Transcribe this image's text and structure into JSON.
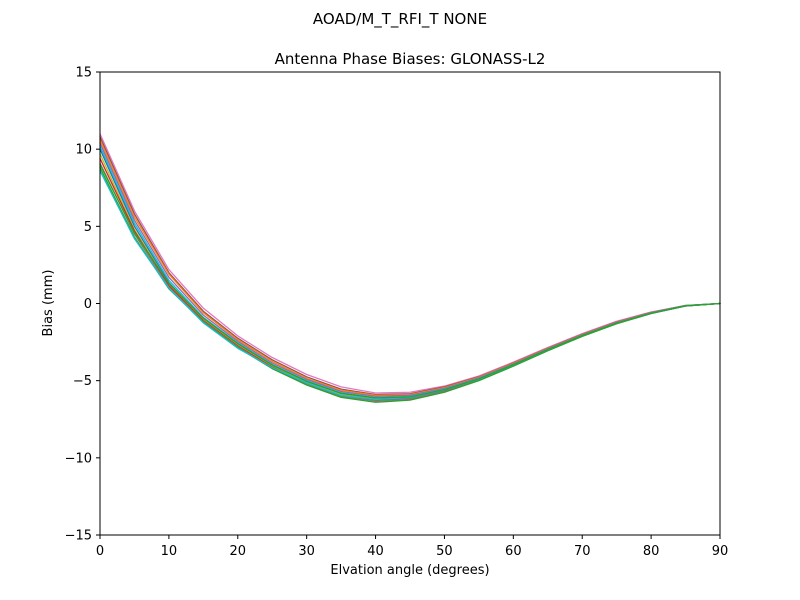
{
  "figure": {
    "suptitle": "AOAD/M_T_RFI_T  NONE"
  },
  "chart_data": {
    "type": "line",
    "title": "Antenna Phase Biases: GLONASS-L2",
    "xlabel": "Elvation angle (degrees)",
    "ylabel": "Bias (mm)",
    "xlim": [
      0,
      90
    ],
    "ylim": [
      -15,
      15
    ],
    "xticks": [
      0,
      10,
      20,
      30,
      40,
      50,
      60,
      70,
      80,
      90
    ],
    "yticks": [
      -15,
      -10,
      -5,
      0,
      5,
      10,
      15
    ],
    "ytick_labels": [
      "−15",
      "−10",
      "−5",
      "0",
      "5",
      "10",
      "15"
    ],
    "xtick_labels": [
      "0",
      "10",
      "20",
      "30",
      "40",
      "50",
      "60",
      "70",
      "80",
      "90"
    ],
    "grid": false,
    "x": [
      0,
      5,
      10,
      15,
      20,
      25,
      30,
      35,
      40,
      45,
      50,
      55,
      60,
      65,
      70,
      75,
      80,
      85,
      90
    ],
    "series": [
      {
        "color": "#e377c2",
        "values": [
          11.0,
          6.0,
          2.2,
          -0.3,
          -2.1,
          -3.5,
          -4.6,
          -5.4,
          -5.8,
          -5.75,
          -5.35,
          -4.7,
          -3.8,
          -2.85,
          -1.95,
          -1.15,
          -0.55,
          -0.12,
          0.0
        ]
      },
      {
        "color": "#8c564b",
        "values": [
          10.8,
          5.8,
          2.0,
          -0.5,
          -2.25,
          -3.65,
          -4.75,
          -5.55,
          -5.9,
          -5.85,
          -5.4,
          -4.75,
          -3.85,
          -2.9,
          -2.0,
          -1.2,
          -0.58,
          -0.13,
          0.0
        ]
      },
      {
        "color": "#ff7f0e",
        "values": [
          10.6,
          5.6,
          1.9,
          -0.6,
          -2.35,
          -3.75,
          -4.85,
          -5.62,
          -5.95,
          -5.9,
          -5.45,
          -4.78,
          -3.88,
          -2.92,
          -2.02,
          -1.22,
          -0.6,
          -0.14,
          0.0
        ]
      },
      {
        "color": "#9467bd",
        "values": [
          10.4,
          5.4,
          1.7,
          -0.75,
          -2.45,
          -3.85,
          -4.92,
          -5.7,
          -6.02,
          -5.95,
          -5.5,
          -4.82,
          -3.92,
          -2.95,
          -2.05,
          -1.24,
          -0.61,
          -0.14,
          0.0
        ]
      },
      {
        "color": "#17becf",
        "values": [
          10.2,
          5.2,
          1.5,
          -0.9,
          -2.55,
          -3.95,
          -5.0,
          -5.78,
          -6.1,
          -6.02,
          -5.55,
          -4.86,
          -3.95,
          -2.98,
          -2.07,
          -1.26,
          -0.62,
          -0.15,
          0.0
        ]
      },
      {
        "color": "#1f77b4",
        "values": [
          10.0,
          5.0,
          1.35,
          -1.0,
          -2.65,
          -4.02,
          -5.08,
          -5.85,
          -6.15,
          -6.08,
          -5.6,
          -4.9,
          -3.98,
          -3.0,
          -2.09,
          -1.27,
          -0.63,
          -0.15,
          0.0
        ]
      },
      {
        "color": "#bcbd22",
        "values": [
          9.7,
          4.8,
          1.25,
          -1.05,
          -2.7,
          -4.08,
          -5.12,
          -5.9,
          -6.2,
          -6.12,
          -5.63,
          -4.92,
          -4.0,
          -3.02,
          -2.1,
          -1.28,
          -0.64,
          -0.15,
          0.0
        ]
      },
      {
        "color": "#d62728",
        "values": [
          9.4,
          4.7,
          1.15,
          -1.1,
          -2.75,
          -4.12,
          -5.18,
          -5.96,
          -6.25,
          -6.16,
          -5.66,
          -4.94,
          -4.02,
          -3.04,
          -2.11,
          -1.29,
          -0.64,
          -0.16,
          0.0
        ]
      },
      {
        "color": "#7f7f7f",
        "values": [
          9.1,
          4.5,
          1.05,
          -1.15,
          -2.8,
          -4.18,
          -5.22,
          -6.02,
          -6.32,
          -6.2,
          -5.7,
          -4.97,
          -4.04,
          -3.05,
          -2.12,
          -1.3,
          -0.65,
          -0.16,
          0.0
        ]
      },
      {
        "color": "#2ca02c",
        "values": [
          8.8,
          4.3,
          0.95,
          -1.2,
          -2.85,
          -4.22,
          -5.28,
          -6.08,
          -6.4,
          -6.26,
          -5.75,
          -5.0,
          -4.06,
          -3.06,
          -2.13,
          -1.31,
          -0.65,
          -0.16,
          0.0
        ]
      },
      {
        "color": "#17becf",
        "values": [
          8.6,
          4.2,
          1.0,
          -1.25,
          -2.9,
          -4.15,
          -5.15,
          -5.95,
          -6.22,
          -6.1,
          -5.6,
          -4.9,
          -3.98,
          -3.0,
          -2.08,
          -1.27,
          -0.63,
          -0.15,
          0.0
        ]
      },
      {
        "color": "#2ca02c",
        "values": [
          9.0,
          4.6,
          1.3,
          -0.95,
          -2.6,
          -3.98,
          -5.05,
          -5.82,
          -6.12,
          -6.05,
          -5.58,
          -4.88,
          -3.96,
          -2.99,
          -2.08,
          -1.27,
          -0.63,
          -0.15,
          0.0
        ]
      }
    ]
  }
}
